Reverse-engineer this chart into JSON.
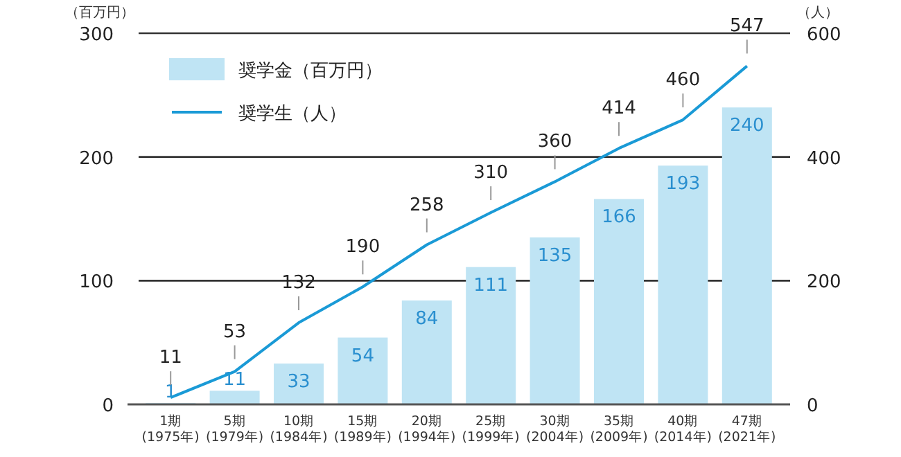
{
  "chart_data": {
    "type": "bar",
    "ylabel": "（百万円）",
    "y2label": "（人）",
    "categories": [
      "1期\n(1975年)",
      "5期\n(1979年)",
      "10期\n(1984年)",
      "15期\n(1989年)",
      "20期\n(1994年)",
      "25期\n(1999年)",
      "30期\n(2004年)",
      "35期\n(2009年)",
      "40期\n(2014年)",
      "47期\n(2021年)"
    ],
    "series": [
      {
        "name": "奨学金（百万円）",
        "color": "#bfe4f4",
        "values": [
          1,
          11,
          33,
          54,
          84,
          111,
          135,
          166,
          193,
          240
        ]
      },
      {
        "name": "奨学生（人）",
        "type": "line",
        "axis": "y2",
        "color": "#1a9ad6",
        "values": [
          11,
          53,
          132,
          190,
          258,
          310,
          360,
          414,
          460,
          547
        ]
      }
    ],
    "ylim": [
      0,
      300
    ],
    "yticks": [
      0,
      100,
      200,
      300
    ],
    "y2lim": [
      0,
      600
    ],
    "y2ticks": [
      0,
      200,
      400,
      600
    ],
    "grid": "y",
    "legend": "top left",
    "data_labels": true
  }
}
